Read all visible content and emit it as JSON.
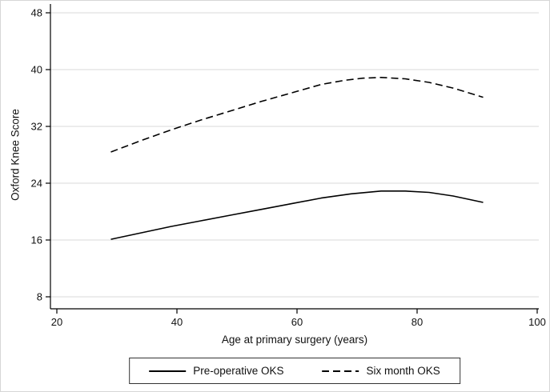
{
  "chart_data": {
    "type": "line",
    "title": "",
    "xlabel": "Age at primary surgery (years)",
    "ylabel": "Oxford Knee Score",
    "xlim": [
      20,
      100
    ],
    "ylim": [
      8,
      48
    ],
    "x_ticks": [
      20,
      40,
      60,
      80,
      100
    ],
    "y_ticks": [
      8,
      16,
      24,
      32,
      40,
      48
    ],
    "grid": "horizontal",
    "legend_position": "bottom-center-boxed",
    "series": [
      {
        "name": "Pre-operative OKS",
        "style": "solid",
        "color": "#000000",
        "x": [
          29,
          34,
          39,
          44,
          49,
          54,
          59,
          64,
          69,
          74,
          78,
          82,
          86,
          91
        ],
        "y": [
          16.1,
          17.0,
          17.9,
          18.7,
          19.5,
          20.3,
          21.1,
          21.9,
          22.5,
          22.9,
          22.9,
          22.7,
          22.2,
          21.3
        ]
      },
      {
        "name": "Six month OKS",
        "style": "dashed",
        "color": "#000000",
        "x": [
          29,
          34,
          39,
          44,
          49,
          54,
          59,
          64,
          68,
          71,
          74,
          78,
          82,
          86,
          91
        ],
        "y": [
          28.4,
          30.0,
          31.5,
          32.9,
          34.2,
          35.5,
          36.7,
          37.9,
          38.5,
          38.8,
          38.9,
          38.7,
          38.2,
          37.4,
          36.1
        ]
      }
    ]
  },
  "colors": {
    "line": "#000000",
    "grid": "#d9d9d9",
    "axis": "#000000",
    "text": "#111111",
    "background": "#ffffff",
    "legend_border": "#333333"
  }
}
